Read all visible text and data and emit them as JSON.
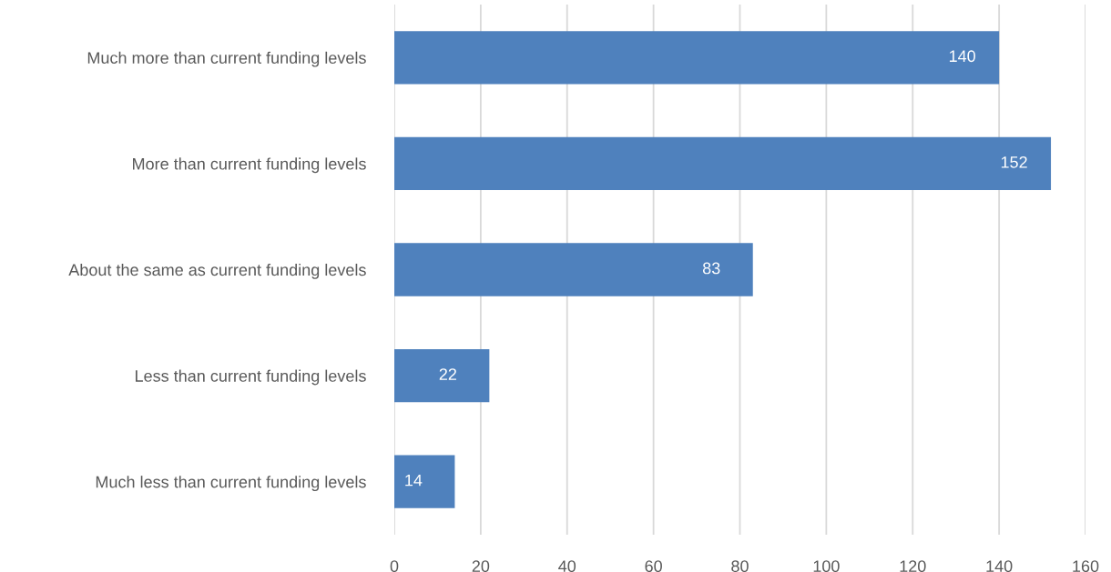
{
  "chart_data": {
    "type": "bar",
    "orientation": "horizontal",
    "categories": [
      "Much more than current funding levels",
      "More than current funding levels",
      "About the same as current funding levels",
      "Less than current funding levels",
      "Much less than current funding levels"
    ],
    "values": [
      140,
      152,
      83,
      22,
      14
    ],
    "color": "#4f81bd",
    "xlim": [
      0,
      160
    ],
    "xticks": [
      0,
      20,
      40,
      60,
      80,
      100,
      120,
      140,
      160
    ],
    "grid": "x",
    "data_labels": true
  }
}
